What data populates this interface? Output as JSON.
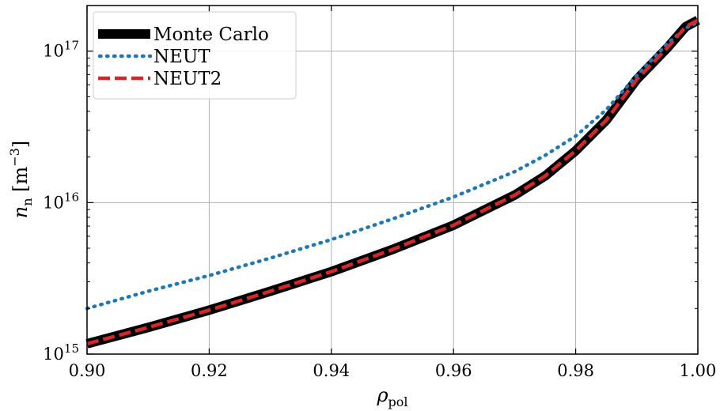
{
  "chart_data": {
    "type": "line",
    "title": "",
    "xlabel": "ρ",
    "xlabel_sub": "pol",
    "ylabel": "n",
    "ylabel_sub": "n",
    "ylabel_unit": " [m",
    "ylabel_unit_exp": "−3",
    "ylabel_unit_close": "]",
    "xlim": [
      0.9,
      1.0
    ],
    "ylim": [
      1000000000000000.0,
      2e+17
    ],
    "yscale": "log",
    "grid": true,
    "legend_position": "top-left",
    "x_ticks": [
      "0.90",
      "0.92",
      "0.94",
      "0.96",
      "0.98",
      "1.00"
    ],
    "y_ticks": [
      {
        "base": "10",
        "exp": "15",
        "value": 1000000000000000.0
      },
      {
        "base": "10",
        "exp": "16",
        "value": 1e+16
      },
      {
        "base": "10",
        "exp": "17",
        "value": 1e+17
      }
    ],
    "x": [
      0.9,
      0.91,
      0.92,
      0.93,
      0.94,
      0.95,
      0.96,
      0.97,
      0.975,
      0.98,
      0.985,
      0.99,
      0.995,
      0.998,
      1.0
    ],
    "series": [
      {
        "name": "Monte Carlo",
        "color": "#000000",
        "style": "solid",
        "values": [
          1170000000000000.0,
          1500000000000000.0,
          1950000000000000.0,
          2600000000000000.0,
          3500000000000000.0,
          4900000000000000.0,
          7100000000000000.0,
          1.12e+16,
          1.5e+16,
          2.2e+16,
          3.5e+16,
          6.5e+16,
          1.05e+17,
          1.45e+17,
          1.6e+17
        ]
      },
      {
        "name": "NEUT",
        "color": "#1f77b4",
        "style": "dotted",
        "values": [
          2000000000000000.0,
          2600000000000000.0,
          3300000000000000.0,
          4300000000000000.0,
          5700000000000000.0,
          7800000000000000.0,
          1.09e+16,
          1.6e+16,
          2.05e+16,
          2.75e+16,
          4.1e+16,
          6.9e+16,
          1.12e+17,
          1.42e+17,
          1.55e+17
        ]
      },
      {
        "name": "NEUT2",
        "color": "#d62728",
        "style": "dashed",
        "values": [
          1170000000000000.0,
          1500000000000000.0,
          1950000000000000.0,
          2600000000000000.0,
          3500000000000000.0,
          4900000000000000.0,
          7100000000000000.0,
          1.12e+16,
          1.5e+16,
          2.2e+16,
          3.5e+16,
          6.5e+16,
          1.05e+17,
          1.45e+17,
          1.6e+17
        ]
      }
    ]
  }
}
